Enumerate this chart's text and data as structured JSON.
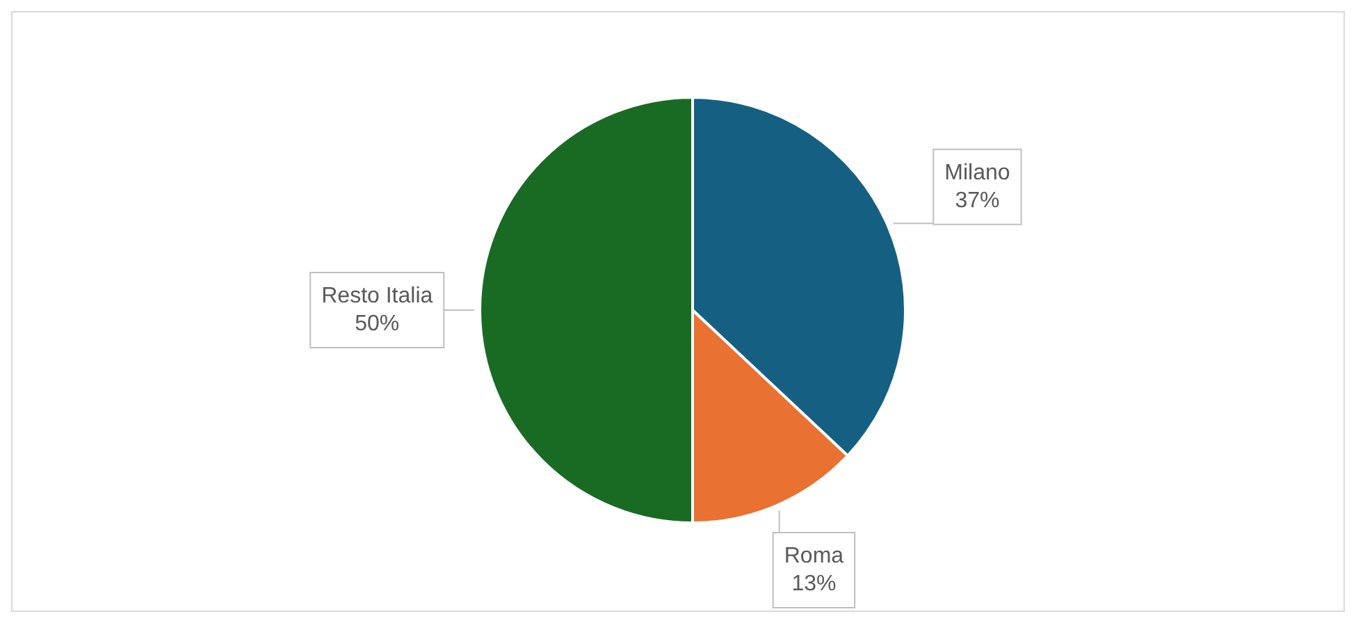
{
  "chart_data": {
    "type": "pie",
    "categories": [
      "Milano",
      "Roma",
      "Resto Italia"
    ],
    "values": [
      37,
      13,
      50
    ],
    "colors": [
      "#156082",
      "#e97132",
      "#196b24"
    ],
    "value_labels": [
      "37%",
      "13%",
      "50%"
    ],
    "legend": false
  }
}
